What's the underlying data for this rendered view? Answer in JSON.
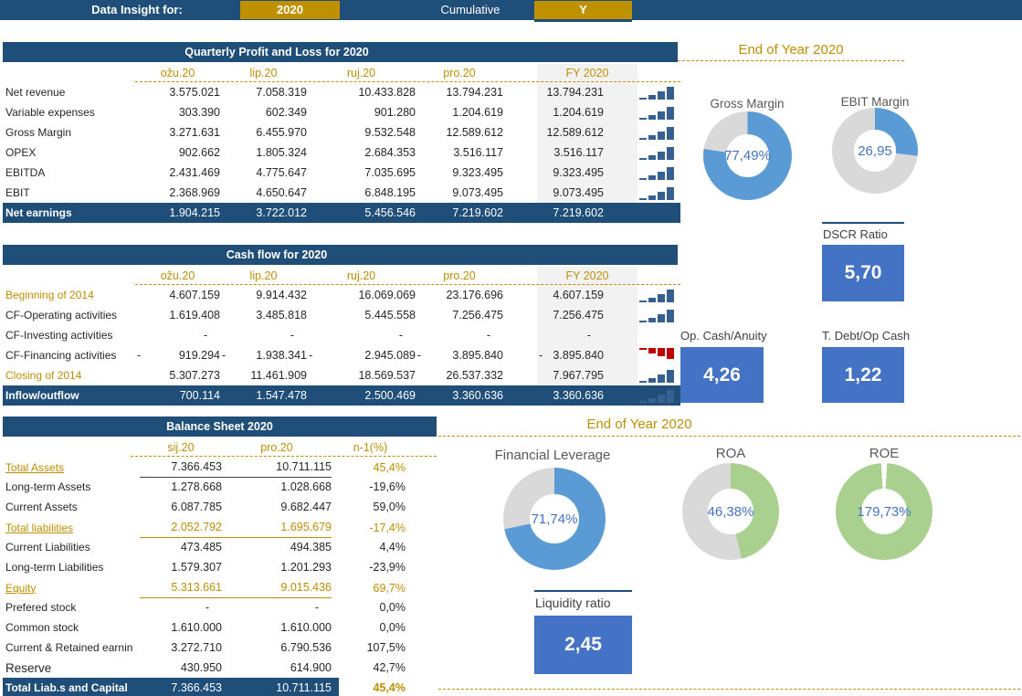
{
  "topbar": {
    "label": "Data Insight for:",
    "year_button": "2020",
    "mode_label": "Cumulative",
    "toggle_button": "Y"
  },
  "colors": {
    "navy": "#1F4E79",
    "gold_button": "#BF9000",
    "gold_text": "#BF8F00",
    "kpi_blue": "#4472C4",
    "donut_blue": "#5B9BD5",
    "donut_green": "#A9D08E",
    "donut_track": "#D9D9D9",
    "spark_navy": "#376092",
    "spark_red": "#C00000",
    "fy_column_bg": "#F2F2F2"
  },
  "pnl": {
    "title": "Quarterly Profit and Loss for 2020",
    "columns": [
      "ožu.20",
      "lip.20",
      "ruj.20",
      "pro.20",
      "FY 2020"
    ],
    "rows": [
      {
        "label": "Net revenue",
        "values": [
          "3.575.021",
          "7.058.319",
          "10.433.828",
          "13.794.231",
          "13.794.231"
        ],
        "spark": "asc",
        "cls": ""
      },
      {
        "label": "Variable expenses",
        "values": [
          "303.390",
          "602.349",
          "901.280",
          "1.204.619",
          "1.204.619"
        ],
        "spark": "asc",
        "cls": ""
      },
      {
        "label": "Gross Margin",
        "values": [
          "3.271.631",
          "6.455.970",
          "9.532.548",
          "12.589.612",
          "12.589.612"
        ],
        "spark": "asc",
        "cls": ""
      },
      {
        "label": "OPEX",
        "values": [
          "902.662",
          "1.805.324",
          "2.684.353",
          "3.516.117",
          "3.516.117"
        ],
        "spark": "asc",
        "cls": ""
      },
      {
        "label": "EBITDA",
        "values": [
          "2.431.469",
          "4.775.647",
          "7.035.695",
          "9.323.495",
          "9.323.495"
        ],
        "spark": "asc",
        "cls": ""
      },
      {
        "label": "EBIT",
        "values": [
          "2.368.969",
          "4.650.647",
          "6.848.195",
          "9.073.495",
          "9.073.495"
        ],
        "spark": "asc",
        "cls": ""
      },
      {
        "label": "Net earnings",
        "values": [
          "1.904.215",
          "3.722.012",
          "5.456.546",
          "7.219.602",
          "7.219.602"
        ],
        "spark": "none",
        "cls": "total"
      }
    ]
  },
  "cashflow": {
    "title": "Cash flow for 2020",
    "columns": [
      "ožu.20",
      "lip.20",
      "ruj.20",
      "pro.20",
      "FY 2020"
    ],
    "rows": [
      {
        "label": "Beginning of 2014",
        "values": [
          "4.607.159",
          "9.914.432",
          "16.069.069",
          "23.176.696",
          "4.607.159"
        ],
        "spark": "asc",
        "cls": "gold-label"
      },
      {
        "label": "CF-Operating activities",
        "values": [
          "1.619.408",
          "3.485.818",
          "5.445.558",
          "7.256.475",
          "7.256.475"
        ],
        "spark": "asc",
        "cls": ""
      },
      {
        "label": "CF-Investing activities",
        "values": [
          "-",
          "-",
          "-",
          "-",
          "-"
        ],
        "spark": "none",
        "cls": "dashrow"
      },
      {
        "label": "CF-Financing activities",
        "signs": [
          "-",
          "-",
          "-",
          "-",
          "-"
        ],
        "values": [
          "919.294",
          "1.938.341",
          "2.945.089",
          "3.895.840",
          "3.895.840"
        ],
        "spark": "neg",
        "cls": ""
      },
      {
        "label": "Closing of 2014",
        "values": [
          "5.307.273",
          "11.461.909",
          "18.569.537",
          "26.537.332",
          "7.967.795"
        ],
        "spark": "asc",
        "cls": "gold-label"
      },
      {
        "label": "Inflow/outflow",
        "values": [
          "700.114",
          "1.547.478",
          "2.500.469",
          "3.360.636",
          "3.360.636"
        ],
        "spark": "asc",
        "cls": "total"
      }
    ]
  },
  "balance": {
    "title": "Balance Sheet 2020",
    "columns": [
      "sij.20",
      "pro.20",
      "n-1(%)"
    ],
    "rows": [
      {
        "label": "Total Assets",
        "values": [
          "7.366.453",
          "10.711.115"
        ],
        "pct": "45,4%",
        "cls": "bs-ta"
      },
      {
        "label": "Long-term Assets",
        "values": [
          "1.278.668",
          "1.028.668"
        ],
        "pct": "-19,6%",
        "cls": ""
      },
      {
        "label": "Current Assets",
        "values": [
          "6.087.785",
          "9.682.447"
        ],
        "pct": "59,0%",
        "cls": ""
      },
      {
        "label": "Total liabilities",
        "values": [
          "2.052.792",
          "1.695.679"
        ],
        "pct": "-17,4%",
        "cls": "bs-gold"
      },
      {
        "label": "Current Liabilities",
        "values": [
          "473.485",
          "494.385"
        ],
        "pct": "4,4%",
        "cls": ""
      },
      {
        "label": "Long-term Liabilities",
        "values": [
          "1.579.307",
          "1.201.293"
        ],
        "pct": "-23,9%",
        "cls": ""
      },
      {
        "label": "Equity",
        "values": [
          "5.313.661",
          "9.015.436"
        ],
        "pct": "69,7%",
        "cls": "bs-gold"
      },
      {
        "label": "Prefered stock",
        "values": [
          "-",
          "-"
        ],
        "pct": "0,0%",
        "cls": "dashrow"
      },
      {
        "label": "Common stock",
        "values": [
          "1.610.000",
          "1.610.000"
        ],
        "pct": "0,0%",
        "cls": ""
      },
      {
        "label": "Current & Retained earnin",
        "values": [
          "3.272.710",
          "6.790.536"
        ],
        "pct": "107,5%",
        "cls": ""
      },
      {
        "label": "Reserve",
        "values": [
          "430.950",
          "614.900"
        ],
        "pct": "42,7%",
        "cls": "big"
      },
      {
        "label": "Total Liab.s and Capital",
        "values": [
          "7.366.453",
          "10.711.115"
        ],
        "pct": "45,4%",
        "cls": "bs-total"
      }
    ]
  },
  "sections": {
    "eoy_top_title": "End of Year 2020",
    "eoy_bottom_title": "End of Year 2020"
  },
  "donuts": {
    "gross_margin": {
      "label": "Gross Margin",
      "value": "77,49%",
      "pct": 77.49,
      "color": "#5B9BD5"
    },
    "ebit_margin": {
      "label": "EBIT Margin",
      "value": "26,95",
      "pct": 26.95,
      "color": "#5B9BD5"
    },
    "fin_leverage": {
      "label": "Financial Leverage",
      "value": "71,74%",
      "pct": 71.74,
      "color": "#5B9BD5"
    },
    "roa": {
      "label": "ROA",
      "value": "46,38%",
      "pct": 46.38,
      "color": "#A9D08E"
    },
    "roe": {
      "label": "ROE",
      "value": "179,73%",
      "pct": 179.73,
      "color": "#A9D08E"
    }
  },
  "kpis": {
    "dscr": {
      "label": "DSCR Ratio",
      "value": "5,70"
    },
    "opcash": {
      "label": "Op. Cash/Anuity",
      "value": "4,26"
    },
    "tdebt": {
      "label": "T. Debt/Op Cash",
      "value": "1,22"
    },
    "liquidity": {
      "label": "Liquidity ratio",
      "value": "2,45"
    }
  }
}
